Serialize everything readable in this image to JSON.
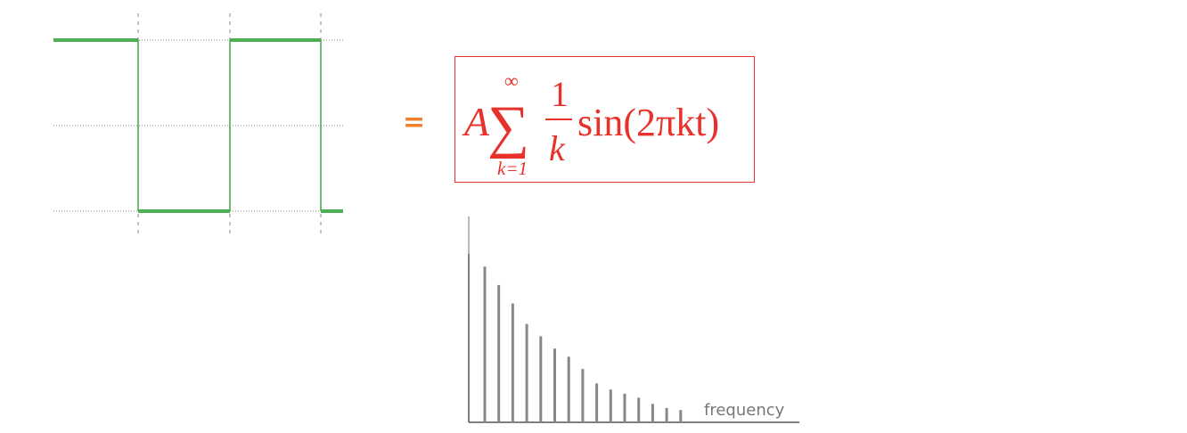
{
  "colors": {
    "square_wave": "#4caf50",
    "formula": "#e8312b",
    "equals": "#f07f2e",
    "spectrum": "#888888",
    "label": "#777777"
  },
  "equals_sign": "=",
  "formula": {
    "amplitude": "A",
    "sum_symbol": "∑",
    "sum_upper": "∞",
    "sum_lower": "k=1",
    "numerator": "1",
    "denominator": "k",
    "function": "sin(2πkt)"
  },
  "spectrum": {
    "axis_label": "frequency",
    "relative_magnitudes": [
      0.76,
      0.67,
      0.58,
      0.48,
      0.42,
      0.36,
      0.32,
      0.26,
      0.19,
      0.16,
      0.14,
      0.12,
      0.09,
      0.07,
      0.06
    ]
  }
}
